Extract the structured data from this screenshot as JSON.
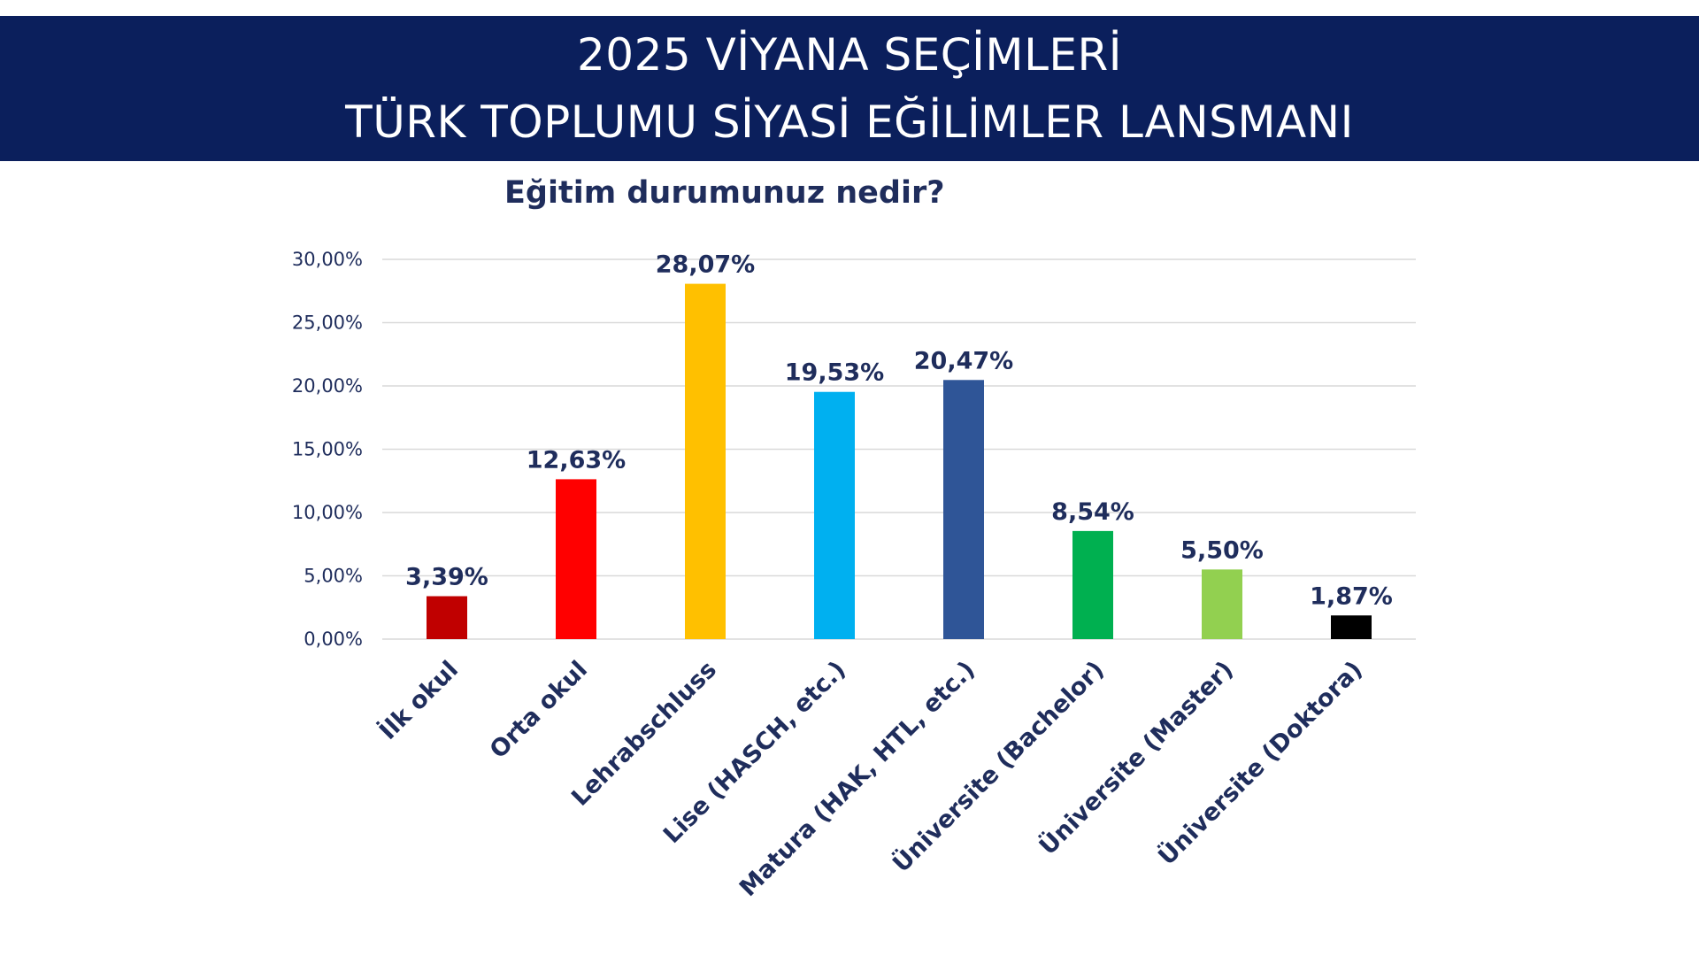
{
  "header": {
    "line1": "2025 VİYANA SEÇİMLERİ",
    "line2": "TÜRK TOPLUMU SİYASİ EĞİLİMLER LANSMANI"
  },
  "colors": {
    "banner": "#0b1f5c",
    "text": "#1f2d5c",
    "grid": "#d9d9d9"
  },
  "chart_data": {
    "type": "bar",
    "title": "Eğitim durumunuz nedir?",
    "xlabel": "",
    "ylabel": "",
    "ylim": [
      0,
      30
    ],
    "yticks": [
      0,
      5,
      10,
      15,
      20,
      25,
      30
    ],
    "ytick_labels": [
      "0,00%",
      "5,00%",
      "10,00%",
      "15,00%",
      "20,00%",
      "25,00%",
      "30,00%"
    ],
    "grid": true,
    "categories": [
      "İlk okul",
      "Orta okul",
      "Lehrabschluss",
      "Lise (HASCH, etc.)",
      "Matura (HAK, HTL, etc.)",
      "Üniversite (Bachelor)",
      "Üniversite (Master)",
      "Üniversite (Doktora)"
    ],
    "values": [
      3.39,
      12.63,
      28.07,
      19.53,
      20.47,
      8.54,
      5.5,
      1.87
    ],
    "value_labels": [
      "3,39%",
      "12,63%",
      "28,07%",
      "19,53%",
      "20,47%",
      "8,54%",
      "5,50%",
      "1,87%"
    ],
    "bar_colors": [
      "#c00000",
      "#ff0000",
      "#ffc000",
      "#00b0f0",
      "#2f5597",
      "#00b050",
      "#92d050",
      "#000000"
    ]
  }
}
